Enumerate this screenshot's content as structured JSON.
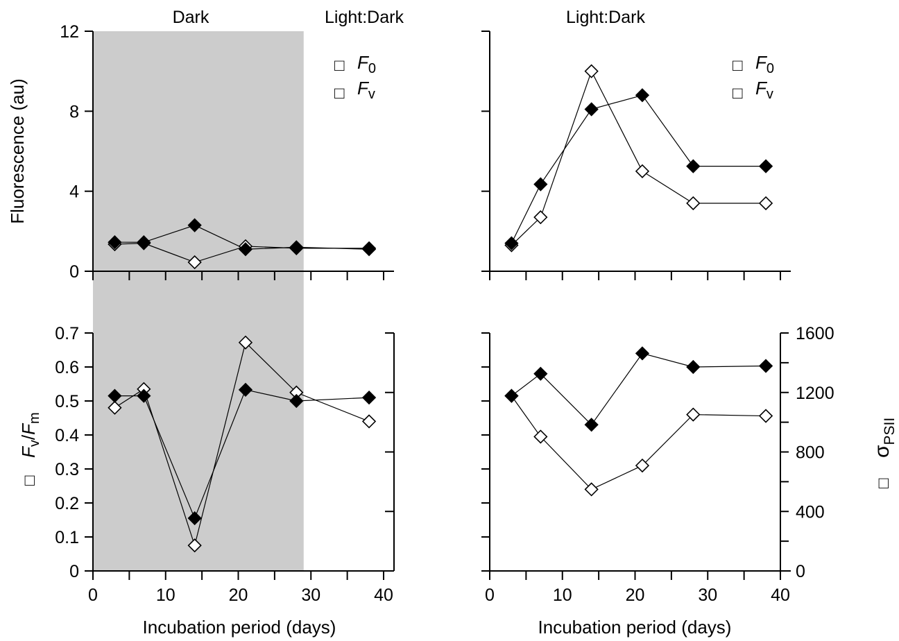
{
  "colors": {
    "shade": "#cccccc",
    "filled": "#000000",
    "open": "#ffffff"
  },
  "headers": {
    "dark": "Dark",
    "light_dark_left": "Light:Dark",
    "light_dark_right": "Light:Dark"
  },
  "legend": {
    "f0": {
      "symbol": "□",
      "text": "F",
      "sub": "0"
    },
    "fv": {
      "symbol": "□",
      "text": "F",
      "sub": "v"
    }
  },
  "axis_labels": {
    "fluorescence": "Fluorescence (au)",
    "x": "Incubation period (days)",
    "fvfm_symbol": "□",
    "fvfm_F1": "F",
    "fvfm_sub1": "v",
    "fvfm_slash": "/",
    "fvfm_F2": "F",
    "fvfm_sub2": "m",
    "sigma_symbol": "□",
    "sigma_main": "σ",
    "sigma_sub": "PSII"
  },
  "chart_data": [
    {
      "id": "top-left",
      "type": "line",
      "panel_header": "Dark / Light:Dark",
      "shaded_xrange": [
        0,
        29
      ],
      "xlim": [
        0,
        40
      ],
      "ylim": [
        0,
        12
      ],
      "yticks": [
        "0",
        "4",
        "8",
        "12"
      ],
      "ylabel": "Fluorescence (au)",
      "legend": [
        "F0",
        "Fv"
      ],
      "legend_position": "top-right",
      "series": [
        {
          "name": "F0",
          "marker": "open-diamond",
          "x": [
            3,
            7,
            14,
            21,
            28,
            38
          ],
          "y": [
            1.35,
            1.4,
            0.45,
            1.25,
            1.15,
            1.15
          ]
        },
        {
          "name": "Fv",
          "marker": "filled-diamond",
          "x": [
            3,
            7,
            14,
            21,
            28,
            38
          ],
          "y": [
            1.45,
            1.45,
            2.3,
            1.1,
            1.2,
            1.1
          ]
        }
      ]
    },
    {
      "id": "top-right",
      "type": "line",
      "panel_header": "Light:Dark",
      "xlim": [
        0,
        40
      ],
      "ylim": [
        0,
        12
      ],
      "legend": [
        "F0",
        "Fv"
      ],
      "legend_position": "top-right",
      "series": [
        {
          "name": "F0",
          "marker": "open-diamond",
          "x": [
            3,
            7,
            14,
            21,
            28,
            38
          ],
          "y": [
            1.3,
            2.7,
            10.0,
            5.0,
            3.4,
            3.4
          ]
        },
        {
          "name": "Fv",
          "marker": "filled-diamond",
          "x": [
            3,
            7,
            14,
            21,
            28,
            38
          ],
          "y": [
            1.4,
            4.35,
            8.1,
            8.8,
            5.25,
            5.25
          ]
        }
      ]
    },
    {
      "id": "bottom-left",
      "type": "line",
      "shaded_xrange": [
        0,
        29
      ],
      "xlim": [
        0,
        40
      ],
      "xticks": [
        "0",
        "10",
        "20",
        "30",
        "40"
      ],
      "xlabel": "Incubation period (days)",
      "ylim": [
        0,
        0.7
      ],
      "yticks": [
        "0",
        "0.1",
        "0.2",
        "0.3",
        "0.4",
        "0.5",
        "0.6",
        "0.7"
      ],
      "ylabel": "Fv/Fm",
      "series": [
        {
          "name": "Fv/Fm",
          "marker": "open-diamond",
          "x": [
            3,
            7,
            14,
            21,
            28,
            38
          ],
          "y": [
            0.48,
            0.535,
            0.075,
            0.672,
            0.525,
            0.44
          ]
        },
        {
          "name": "σPSII",
          "marker": "filled-diamond",
          "x": [
            3,
            7,
            14,
            21,
            28,
            38
          ],
          "y": [
            0.515,
            0.515,
            0.155,
            0.533,
            0.5,
            0.51
          ]
        }
      ]
    },
    {
      "id": "bottom-right",
      "type": "line",
      "xlim": [
        0,
        40
      ],
      "xticks": [
        "0",
        "10",
        "20",
        "30",
        "40"
      ],
      "xlabel": "Incubation period (days)",
      "ylim": [
        0,
        0.7
      ],
      "y2lim": [
        0,
        1600
      ],
      "y2ticks": [
        "0",
        "400",
        "800",
        "1200",
        "1600"
      ],
      "y2label": "σPSII",
      "series": [
        {
          "name": "Fv/Fm",
          "marker": "open-diamond",
          "x": [
            3,
            7,
            14,
            21,
            28,
            38
          ],
          "y": [
            0.515,
            0.395,
            0.24,
            0.31,
            0.46,
            0.456
          ]
        },
        {
          "name": "σPSII",
          "marker": "filled-diamond",
          "x": [
            3,
            7,
            14,
            21,
            28,
            38
          ],
          "y": [
            0.515,
            0.58,
            0.43,
            0.64,
            0.6,
            0.603
          ]
        }
      ]
    }
  ]
}
